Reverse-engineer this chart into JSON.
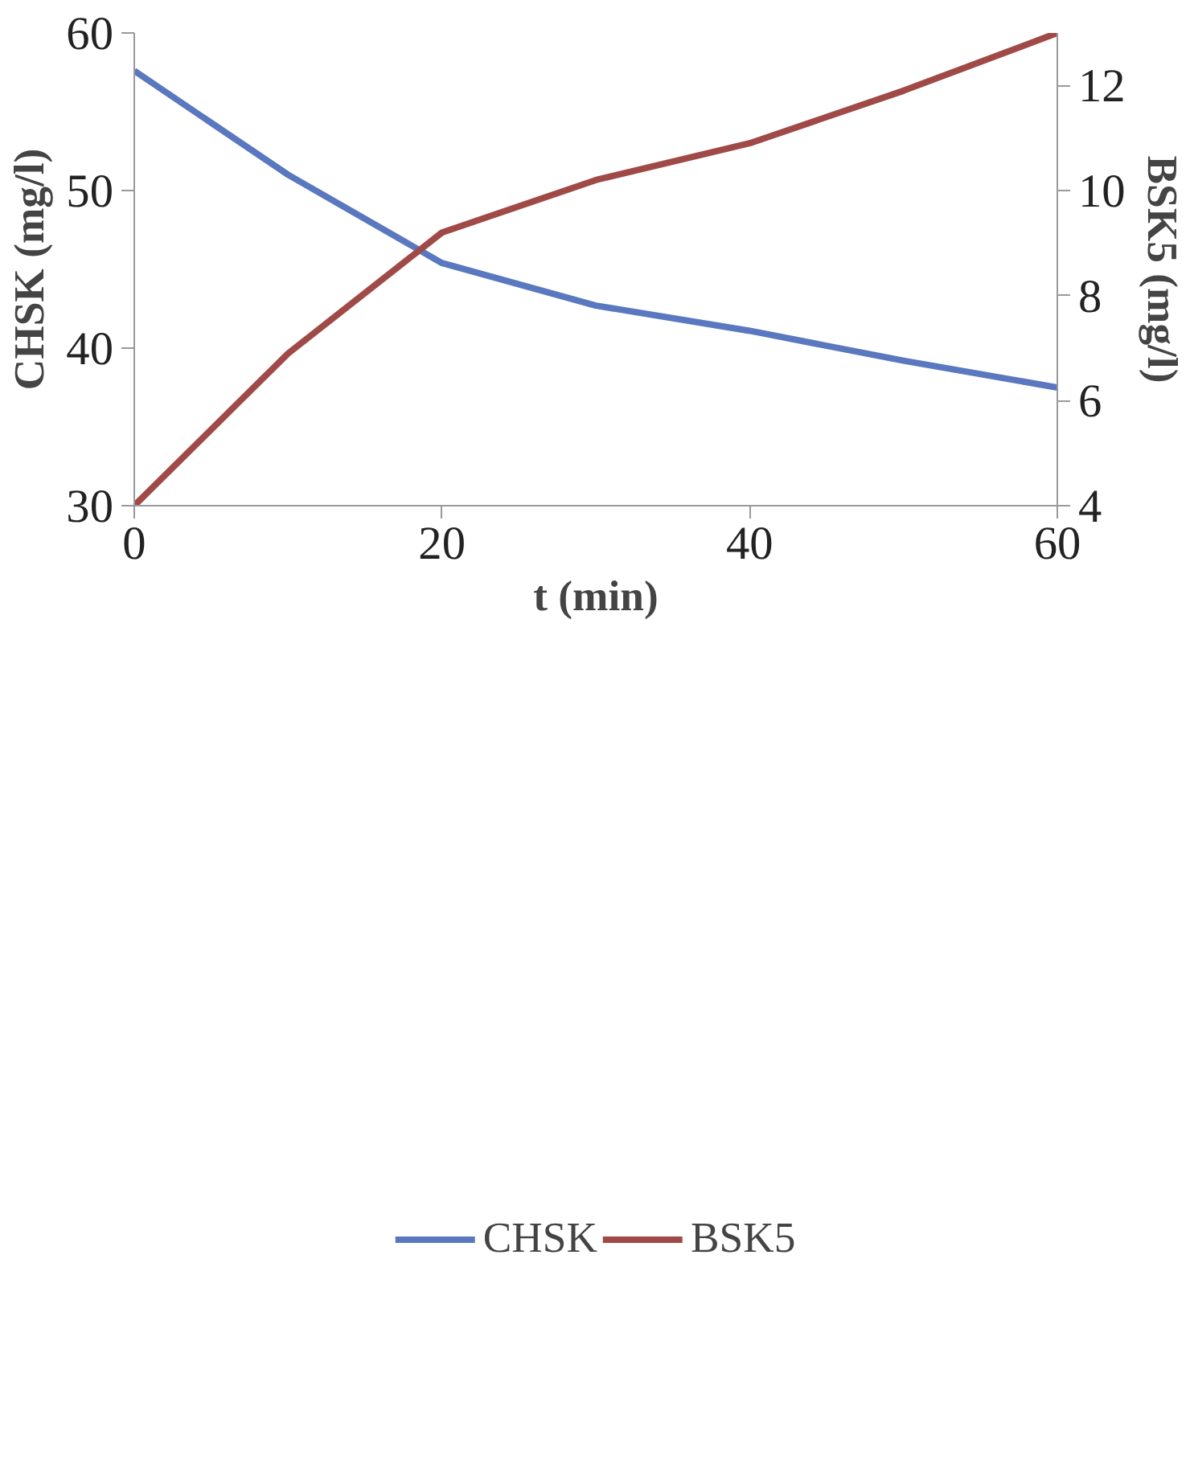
{
  "chart_data": {
    "type": "line",
    "xlabel": "t (min)",
    "ylabel": "CHSK (mg/l)",
    "y2label": "BSK5 (mg/l)",
    "x": [
      0,
      10,
      20,
      30,
      40,
      50,
      60
    ],
    "series": [
      {
        "name": "CHSK",
        "color": "#5a78bf",
        "values": [
          57.6,
          51.0,
          45.4,
          42.7,
          41.1,
          39.2,
          37.5
        ]
      },
      {
        "name": "BSK5",
        "color": "#a04a48",
        "axis": "y2",
        "values": [
          4,
          6.9,
          9.2,
          10.2,
          10.9,
          11.9,
          13
        ]
      }
    ],
    "xlim": [
      0,
      60
    ],
    "xticks": [
      0,
      20,
      40,
      60
    ],
    "ylim": [
      30,
      60
    ],
    "yticks": [
      30,
      40,
      50,
      60
    ],
    "y2lim": [
      4,
      13
    ],
    "y2ticks": [
      4,
      6,
      8,
      10,
      12
    ],
    "grid": false,
    "legend": "bottom",
    "marker": "none",
    "line_style": "solid"
  }
}
